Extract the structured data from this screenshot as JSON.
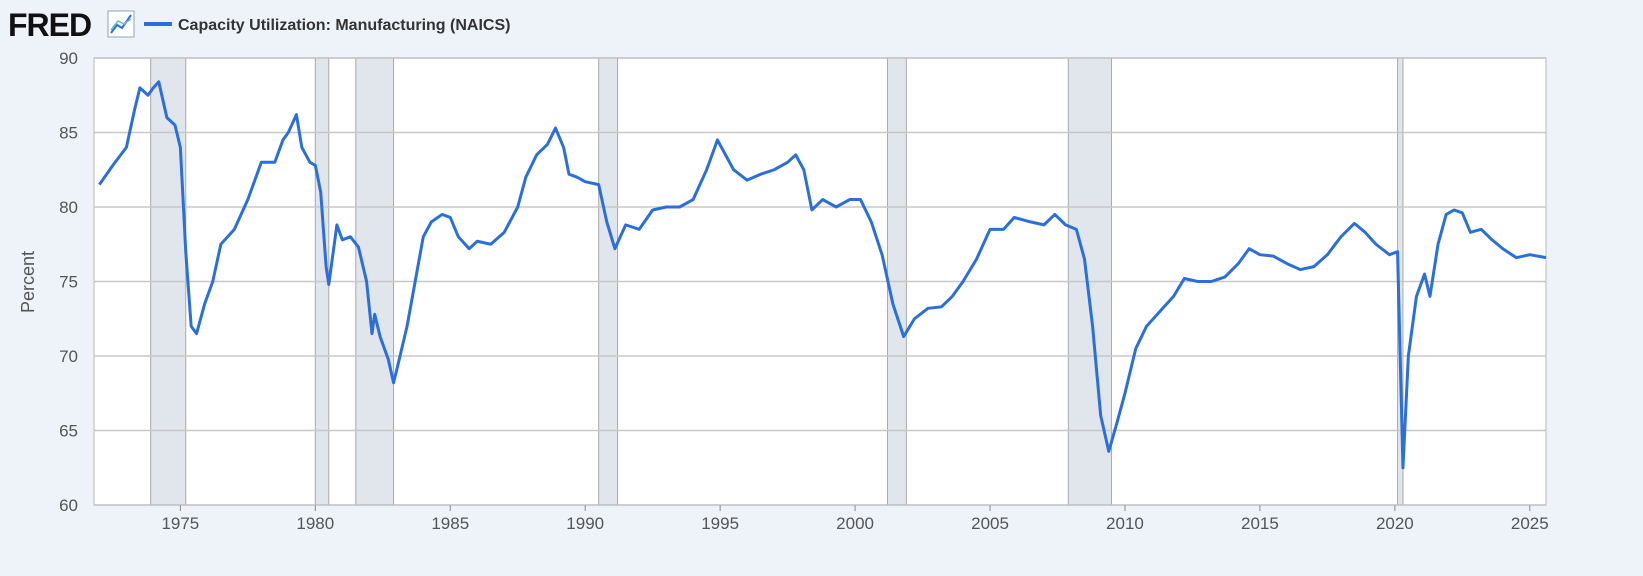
{
  "brand": "FRED",
  "chart_data": {
    "type": "line",
    "ylabel": "Percent",
    "xlim": [
      1971.8,
      2025.6
    ],
    "xticks": [
      1975,
      1980,
      1985,
      1990,
      1995,
      2000,
      2005,
      2010,
      2015,
      2020,
      2025
    ],
    "ylim": [
      60,
      90
    ],
    "yticks": [
      60,
      65,
      70,
      75,
      80,
      85,
      90
    ],
    "grid": true,
    "recessions": [
      [
        1973.9,
        1975.2
      ],
      [
        1980.0,
        1980.5
      ],
      [
        1981.5,
        1982.9
      ],
      [
        1990.5,
        1991.2
      ],
      [
        2001.2,
        2001.9
      ],
      [
        2007.9,
        2009.5
      ],
      [
        2020.1,
        2020.3
      ]
    ],
    "x": [
      1972.0,
      1972.5,
      1973.0,
      1973.3,
      1973.5,
      1973.8,
      1974.0,
      1974.2,
      1974.5,
      1974.8,
      1975.0,
      1975.2,
      1975.4,
      1975.6,
      1975.9,
      1976.2,
      1976.5,
      1977.0,
      1977.5,
      1978.0,
      1978.5,
      1978.8,
      1979.0,
      1979.3,
      1979.5,
      1979.8,
      1980.0,
      1980.2,
      1980.4,
      1980.5,
      1980.8,
      1981.0,
      1981.3,
      1981.6,
      1981.9,
      1982.1,
      1982.2,
      1982.4,
      1982.7,
      1982.9,
      1983.1,
      1983.4,
      1983.7,
      1984.0,
      1984.3,
      1984.7,
      1985.0,
      1985.3,
      1985.7,
      1986.0,
      1986.5,
      1987.0,
      1987.5,
      1987.8,
      1988.2,
      1988.6,
      1988.9,
      1989.2,
      1989.4,
      1989.7,
      1990.0,
      1990.5,
      1990.8,
      1991.1,
      1991.5,
      1992.0,
      1992.5,
      1993.0,
      1993.5,
      1994.0,
      1994.5,
      1994.9,
      1995.2,
      1995.5,
      1996.0,
      1996.5,
      1997.0,
      1997.5,
      1997.8,
      1998.1,
      1998.4,
      1998.8,
      1999.3,
      1999.8,
      2000.2,
      2000.6,
      2001.0,
      2001.4,
      2001.8,
      2002.2,
      2002.7,
      2003.2,
      2003.6,
      2004.0,
      2004.5,
      2005.0,
      2005.5,
      2005.9,
      2006.5,
      2007.0,
      2007.4,
      2007.8,
      2008.2,
      2008.5,
      2008.8,
      2009.1,
      2009.4,
      2009.7,
      2010.0,
      2010.4,
      2010.8,
      2011.3,
      2011.8,
      2012.2,
      2012.7,
      2013.2,
      2013.7,
      2014.2,
      2014.6,
      2015.0,
      2015.5,
      2016.0,
      2016.5,
      2017.0,
      2017.5,
      2018.0,
      2018.5,
      2018.9,
      2019.3,
      2019.8,
      2020.1,
      2020.3,
      2020.5,
      2020.8,
      2021.1,
      2021.3,
      2021.6,
      2021.9,
      2022.2,
      2022.5,
      2022.8,
      2023.2,
      2023.6,
      2024.0,
      2024.5,
      2025.0,
      2025.6
    ],
    "series": [
      {
        "name": "Capacity Utilization: Manufacturing (NAICS)",
        "color": "#2a6fdb",
        "values": [
          81.5,
          82.8,
          84,
          86.5,
          88,
          87.5,
          88,
          88.4,
          86,
          85.5,
          84,
          77,
          72,
          71.5,
          73.5,
          75,
          77.5,
          78.5,
          80.5,
          83,
          83,
          84.5,
          85,
          86.2,
          84,
          83,
          82.8,
          81,
          76,
          74.8,
          78.8,
          77.8,
          78,
          77.3,
          75,
          71.5,
          72.8,
          71.3,
          69.8,
          68.2,
          69.7,
          72,
          75,
          78,
          79,
          79.5,
          79.3,
          78,
          77.2,
          77.7,
          77.5,
          78.3,
          80,
          82,
          83.5,
          84.2,
          85.3,
          84,
          82.2,
          82,
          81.7,
          81.5,
          79,
          77.2,
          78.8,
          78.5,
          79.8,
          80,
          80,
          80.5,
          82.5,
          84.5,
          83.5,
          82.5,
          81.8,
          82.2,
          82.5,
          83,
          83.5,
          82.5,
          79.8,
          80.5,
          80,
          80.5,
          80.5,
          79,
          76.8,
          73.5,
          71.3,
          72.5,
          73.2,
          73.3,
          74,
          75,
          76.5,
          78.5,
          78.5,
          79.3,
          79,
          78.8,
          79.5,
          78.8,
          78.5,
          76.5,
          72,
          66,
          63.6,
          65.5,
          67.5,
          70.5,
          72,
          73,
          74,
          75.2,
          75,
          75,
          75.3,
          76.2,
          77.2,
          76.8,
          76.7,
          76.2,
          75.8,
          76,
          76.8,
          78,
          78.9,
          78.3,
          77.5,
          76.8,
          77,
          62.5,
          70,
          74,
          75.5,
          74,
          77.5,
          79.5,
          79.8,
          79.6,
          78.3,
          78.5,
          77.8,
          77.2,
          76.6,
          76.8,
          76.6
        ]
      }
    ]
  }
}
